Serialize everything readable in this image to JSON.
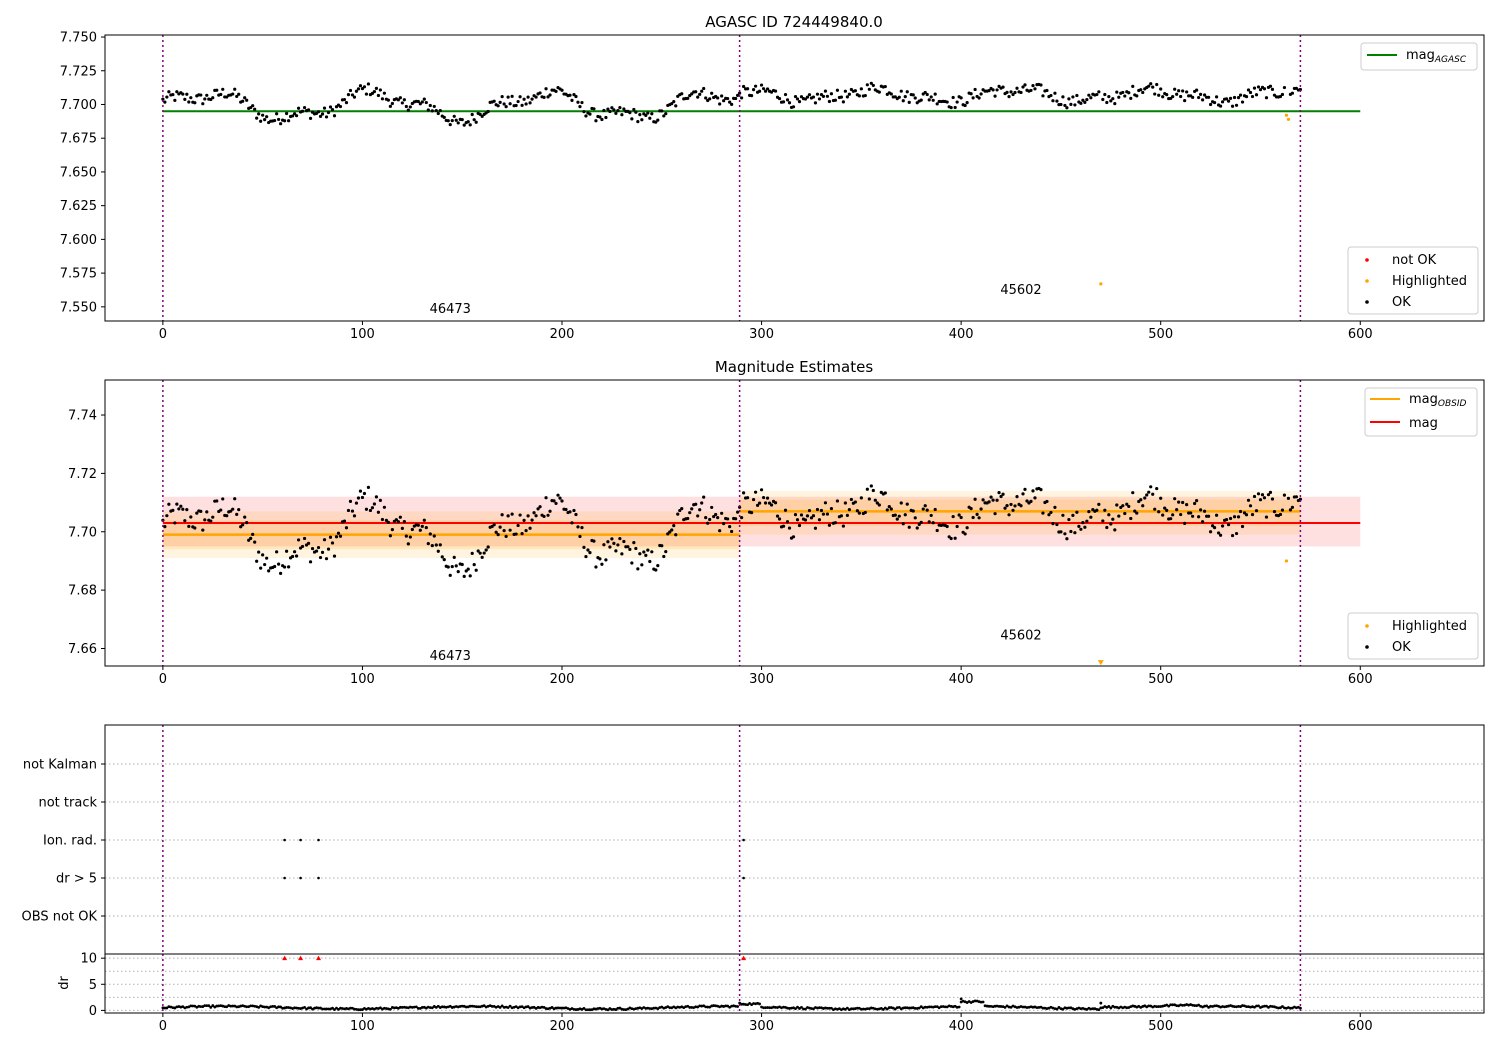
{
  "chart_data": [
    {
      "type": "scatter",
      "title": "AGASC ID 724449840.0",
      "xlim": [
        -29,
        662
      ],
      "ylim": [
        7.5395,
        7.7515
      ],
      "xticks": [
        0,
        100,
        200,
        300,
        400,
        500,
        600
      ],
      "yticks": [
        7.55,
        7.575,
        7.6,
        7.625,
        7.65,
        7.675,
        7.7,
        7.725,
        7.75
      ],
      "obsid_boundaries": [
        0,
        289,
        570
      ],
      "obsid_labels": [
        {
          "text": "46473",
          "x": 144,
          "y": 7.5485
        },
        {
          "text": "45602",
          "x": 430,
          "y": 7.5625
        }
      ],
      "mag_agasc": {
        "name": "mag",
        "subscript": "AGASC",
        "value": 7.695,
        "x_range": [
          0,
          600
        ],
        "color": "#008000"
      },
      "highlighted_points": [
        {
          "x": 470,
          "y": 7.567
        },
        {
          "x": 563,
          "y": 7.692
        },
        {
          "x": 564,
          "y": 7.689
        }
      ],
      "legends": {
        "lines": [
          {
            "label": "mag",
            "subscript": "AGASC",
            "color": "#008000"
          }
        ],
        "points": [
          {
            "label": "not OK",
            "color": "#ff0000"
          },
          {
            "label": "Highlighted",
            "color": "#ffa500"
          },
          {
            "label": "OK",
            "color": "#000000"
          }
        ]
      }
    },
    {
      "type": "scatter",
      "title": "Magnitude Estimates",
      "xlim": [
        -29,
        662
      ],
      "ylim": [
        7.654,
        7.752
      ],
      "xticks": [
        0,
        100,
        200,
        300,
        400,
        500,
        600
      ],
      "yticks": [
        7.66,
        7.68,
        7.7,
        7.72,
        7.74
      ],
      "obsid_boundaries": [
        0,
        289,
        570
      ],
      "obsid_labels": [
        {
          "text": "46473",
          "x": 144,
          "y": 7.6575
        },
        {
          "text": "45602",
          "x": 430,
          "y": 7.6645
        }
      ],
      "mag": {
        "name": "mag",
        "value": 7.703,
        "band": [
          7.695,
          7.712
        ],
        "x_range": [
          0,
          600
        ],
        "color": "#ff0000"
      },
      "mag_obsid": [
        {
          "x_range": [
            0,
            289
          ],
          "value": 7.699,
          "band_inner": [
            7.694,
            7.704
          ],
          "band_outer": [
            7.691,
            7.707
          ]
        },
        {
          "x_range": [
            289,
            570
          ],
          "value": 7.707,
          "band_inner": [
            7.702,
            7.711
          ],
          "band_outer": [
            7.699,
            7.714
          ]
        }
      ],
      "highlighted_points": [
        {
          "x": 470,
          "y": 7.655
        },
        {
          "x": 563,
          "y": 7.69
        }
      ],
      "legends": {
        "lines": [
          {
            "label": "mag",
            "subscript": "OBSID",
            "color": "#ffa500"
          },
          {
            "label": "mag",
            "subscript": "",
            "color": "#ff0000"
          }
        ],
        "points": [
          {
            "label": "Highlighted",
            "color": "#ffa500"
          },
          {
            "label": "OK",
            "color": "#000000"
          }
        ]
      }
    },
    {
      "type": "scatter",
      "title": "",
      "xlim": [
        -29,
        662
      ],
      "categories": [
        "not Kalman",
        "not track",
        "Ion. rad.",
        "dr > 5",
        "OBS not OK"
      ],
      "obsid_boundaries": [
        0,
        289,
        570
      ],
      "flag_points": [
        {
          "category": "Ion. rad.",
          "x": [
            61,
            69,
            78,
            291
          ]
        },
        {
          "category": "dr > 5",
          "x": [
            61,
            69,
            78,
            291
          ]
        }
      ]
    },
    {
      "type": "scatter",
      "title": "",
      "ylabel": "dr",
      "xlim": [
        -29,
        662
      ],
      "ylim": [
        -0.5,
        10.8
      ],
      "xticks": [
        0,
        100,
        200,
        300,
        400,
        500,
        600
      ],
      "yticks": [
        0,
        5,
        10
      ],
      "obsid_boundaries": [
        0,
        289,
        570
      ],
      "clipped_points": [
        61,
        69,
        78,
        291
      ],
      "clip_value": 10,
      "outlier_points": [
        {
          "x": 400,
          "y": 2.2
        },
        {
          "x": 470,
          "y": 1.4
        }
      ]
    }
  ]
}
